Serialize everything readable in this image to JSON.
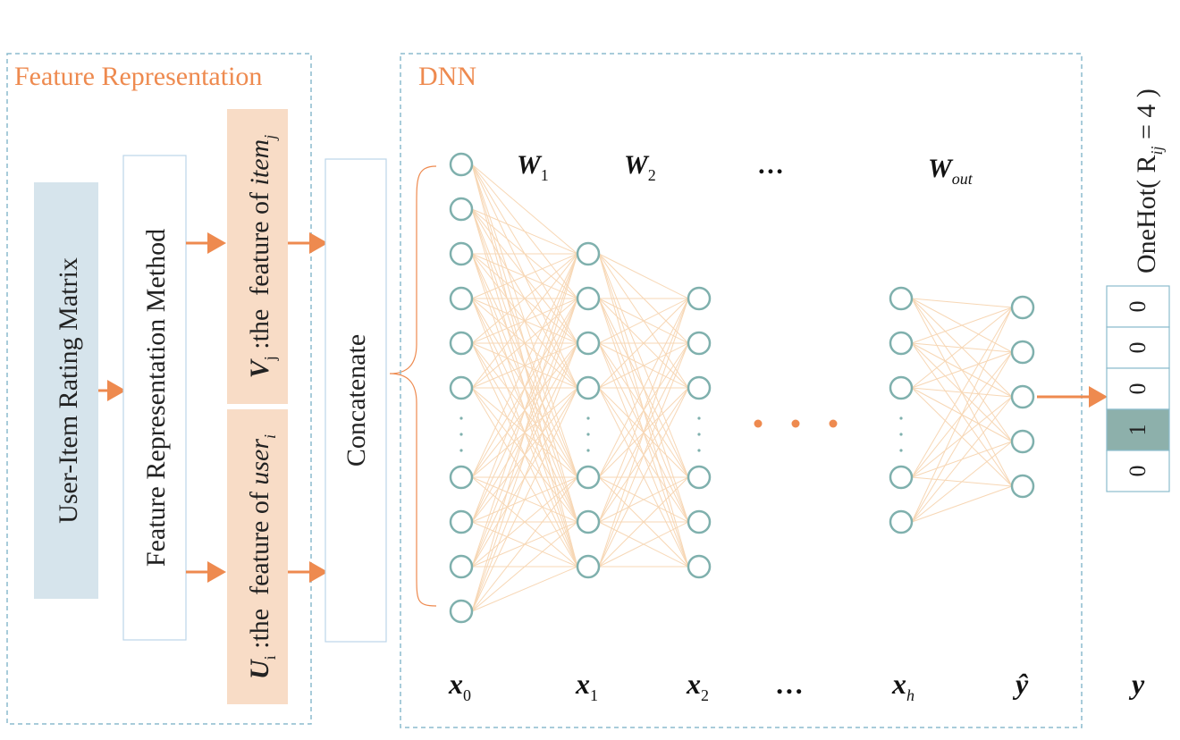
{
  "colors": {
    "orange": "#ee8a4f",
    "teal_node": "#7fb0ad",
    "teal_fill": "#8db0ab",
    "dashed_border": "#8bbccd",
    "matrix_fill": "#d6e4ec",
    "feature_fill": "#f8dcc6",
    "edge": "#f7d7b5",
    "method_border": "#bcd6e8"
  },
  "feature_panel": {
    "title": "Feature Representation",
    "matrix_label": "User-Item Rating Matrix",
    "method_label": "Feature Representation Method",
    "item_feature": {
      "symbol": "V",
      "sub": "j",
      "text": " :the  feature of ",
      "italic_word": "item",
      "italic_sub": "j"
    },
    "user_feature": {
      "symbol": "U",
      "sub": "i",
      "text": " :the  feature of ",
      "italic_word": "user",
      "italic_sub": "i"
    }
  },
  "concatenate_label": "Concatenate",
  "dnn_panel": {
    "title": "DNN",
    "weights": [
      {
        "base": "W",
        "sub": "1"
      },
      {
        "base": "W",
        "sub": "2"
      },
      {
        "base": "…",
        "sub": ""
      },
      {
        "base": "W",
        "sub": "out"
      }
    ],
    "layer_labels": [
      {
        "base": "x",
        "sub": "0"
      },
      {
        "base": "x",
        "sub": "1"
      },
      {
        "base": "x",
        "sub": "2"
      },
      {
        "base": "…",
        "sub": ""
      },
      {
        "base": "x",
        "sub": "h"
      },
      {
        "base": "ŷ",
        "sub": ""
      }
    ]
  },
  "onehot": {
    "label": "OneHot( R",
    "label_sub": "ij",
    "label_tail": " = 4 )",
    "cells": [
      "0",
      "0",
      "0",
      "1",
      "0"
    ],
    "highlight_index": 3,
    "output_label": "y"
  }
}
